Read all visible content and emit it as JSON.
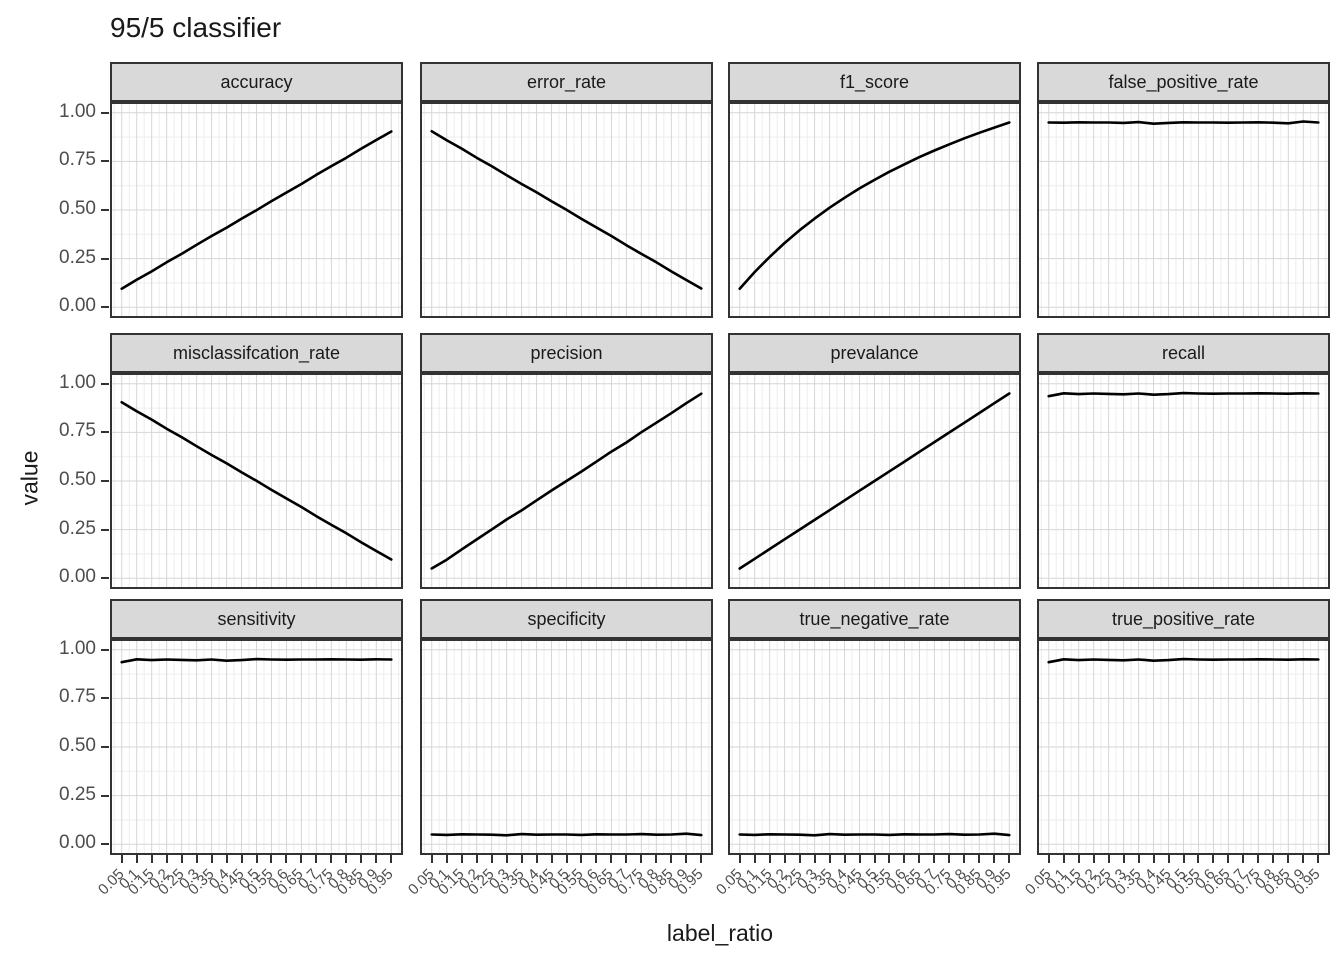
{
  "title": "95/5 classifier",
  "axes": {
    "x_title": "label_ratio",
    "y_title": "value",
    "y_tick_labels": [
      "1.00",
      "0.75",
      "0.50",
      "0.25",
      "0.00"
    ],
    "x_tick_labels": [
      "0.05",
      "0.1",
      "0.15",
      "0.2",
      "0.25",
      "0.3",
      "0.35",
      "0.4",
      "0.45",
      "0.5",
      "0.55",
      "0.6",
      "0.65",
      "0.7",
      "0.75",
      "0.8",
      "0.85",
      "0.9",
      "0.95"
    ]
  },
  "colors": {
    "line": "#000000",
    "strip_fill": "#d9d9d9",
    "panel_border": "#333333",
    "grid_major": "#d6d6d6",
    "grid_minor": "#ededed",
    "tick_label": "#4d4d4d",
    "tick_mark": "#333333",
    "text": "#1a1a1a"
  },
  "chart_data": {
    "type": "line",
    "title": "95/5 classifier",
    "xlabel": "label_ratio",
    "ylabel": "value",
    "ylim": [
      0,
      1
    ],
    "grid": "major+minor",
    "legend_position": "none",
    "facet_layout": {
      "rows": 3,
      "cols": 4
    },
    "x": [
      0.05,
      0.1,
      0.15,
      0.2,
      0.25,
      0.3,
      0.35,
      0.4,
      0.45,
      0.5,
      0.55,
      0.6,
      0.65,
      0.7,
      0.75,
      0.8,
      0.85,
      0.9,
      0.95
    ],
    "facets": [
      {
        "label": "accuracy",
        "values": [
          0.095,
          0.141,
          0.184,
          0.231,
          0.274,
          0.321,
          0.366,
          0.409,
          0.455,
          0.499,
          0.546,
          0.59,
          0.634,
          0.681,
          0.726,
          0.769,
          0.816,
          0.86,
          0.904
        ]
      },
      {
        "label": "error_rate",
        "values": [
          0.905,
          0.859,
          0.816,
          0.769,
          0.726,
          0.679,
          0.634,
          0.591,
          0.545,
          0.501,
          0.454,
          0.41,
          0.366,
          0.319,
          0.274,
          0.231,
          0.184,
          0.14,
          0.096
        ]
      },
      {
        "label": "f1_score",
        "values": [
          0.095,
          0.181,
          0.259,
          0.33,
          0.396,
          0.456,
          0.512,
          0.563,
          0.611,
          0.655,
          0.697,
          0.735,
          0.772,
          0.806,
          0.838,
          0.869,
          0.897,
          0.924,
          0.95
        ]
      },
      {
        "label": "false_positive_rate",
        "values": [
          0.95,
          0.949,
          0.951,
          0.95,
          0.95,
          0.948,
          0.952,
          0.944,
          0.948,
          0.951,
          0.95,
          0.95,
          0.949,
          0.95,
          0.951,
          0.949,
          0.946,
          0.955,
          0.95
        ]
      },
      {
        "label": "misclassifcation_rate",
        "values": [
          0.905,
          0.859,
          0.816,
          0.769,
          0.726,
          0.679,
          0.634,
          0.591,
          0.545,
          0.501,
          0.454,
          0.41,
          0.366,
          0.319,
          0.274,
          0.231,
          0.184,
          0.14,
          0.096
        ]
      },
      {
        "label": "precision",
        "values": [
          0.05,
          0.095,
          0.148,
          0.199,
          0.25,
          0.302,
          0.349,
          0.4,
          0.451,
          0.5,
          0.549,
          0.6,
          0.651,
          0.698,
          0.751,
          0.8,
          0.849,
          0.9,
          0.949
        ]
      },
      {
        "label": "prevalance",
        "values": [
          0.05,
          0.1,
          0.15,
          0.2,
          0.25,
          0.3,
          0.35,
          0.4,
          0.45,
          0.5,
          0.55,
          0.6,
          0.65,
          0.7,
          0.75,
          0.8,
          0.85,
          0.9,
          0.95
        ]
      },
      {
        "label": "recall",
        "values": [
          0.936,
          0.951,
          0.947,
          0.95,
          0.948,
          0.946,
          0.95,
          0.944,
          0.947,
          0.952,
          0.95,
          0.949,
          0.95,
          0.95,
          0.951,
          0.95,
          0.949,
          0.951,
          0.95
        ]
      },
      {
        "label": "sensitivity",
        "values": [
          0.936,
          0.951,
          0.947,
          0.95,
          0.948,
          0.946,
          0.95,
          0.944,
          0.947,
          0.952,
          0.95,
          0.949,
          0.95,
          0.95,
          0.951,
          0.95,
          0.949,
          0.951,
          0.95
        ]
      },
      {
        "label": "specificity",
        "values": [
          0.05,
          0.048,
          0.051,
          0.05,
          0.049,
          0.046,
          0.052,
          0.049,
          0.05,
          0.05,
          0.048,
          0.051,
          0.05,
          0.05,
          0.052,
          0.049,
          0.05,
          0.054,
          0.047
        ]
      },
      {
        "label": "true_negative_rate",
        "values": [
          0.05,
          0.048,
          0.051,
          0.05,
          0.049,
          0.046,
          0.052,
          0.049,
          0.05,
          0.05,
          0.048,
          0.051,
          0.05,
          0.05,
          0.052,
          0.049,
          0.05,
          0.054,
          0.047
        ]
      },
      {
        "label": "true_positive_rate",
        "values": [
          0.936,
          0.951,
          0.947,
          0.95,
          0.948,
          0.946,
          0.95,
          0.944,
          0.947,
          0.952,
          0.95,
          0.949,
          0.95,
          0.95,
          0.951,
          0.95,
          0.949,
          0.951,
          0.95
        ]
      }
    ]
  }
}
